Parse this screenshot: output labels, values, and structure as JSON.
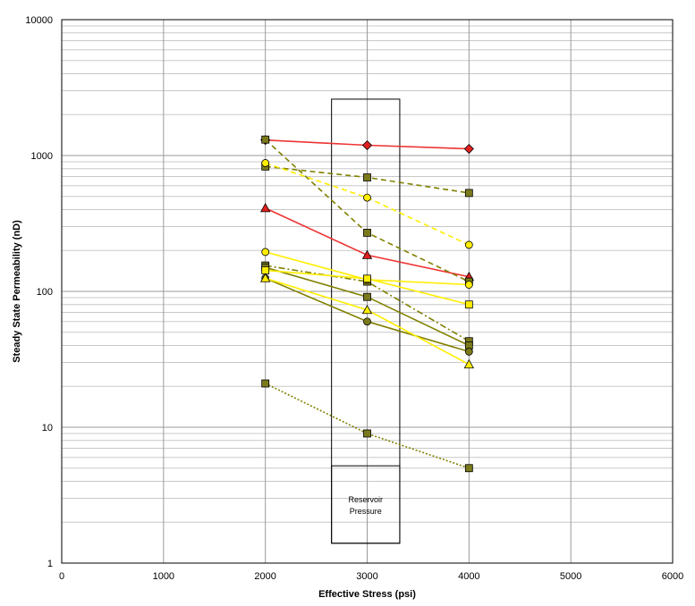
{
  "chart_data": {
    "type": "scatter",
    "title": "",
    "xlabel": "Effective Stress (psi)",
    "ylabel": "Steady State Permeability (nD)",
    "xlim": [
      0,
      6000
    ],
    "ylim": [
      1,
      10000
    ],
    "y_scale": "log",
    "x_ticks": [
      0,
      1000,
      2000,
      3000,
      4000,
      5000,
      6000
    ],
    "y_ticks": [
      1,
      10,
      100,
      1000,
      10000
    ],
    "grid": true,
    "legend": "none",
    "annotation": {
      "lines": [
        "Reservoir",
        "Pressure"
      ],
      "outer_box": {
        "x": [
          2650,
          3320
        ],
        "y": [
          1.4,
          2600
        ]
      },
      "label_box": {
        "x": [
          2650,
          3320
        ],
        "y": [
          1.4,
          5.2
        ]
      }
    },
    "series": [
      {
        "x": [
          2000,
          3000,
          4000
        ],
        "y": [
          1300,
          1190,
          1120
        ],
        "color": "#ee3333",
        "fill": "#e02020",
        "marker": "diamond",
        "dash": "solid"
      },
      {
        "x": [
          2000,
          3000,
          4000
        ],
        "y": [
          410,
          185,
          128
        ],
        "color": "#ee3333",
        "fill": "#e02020",
        "marker": "triangle",
        "dash": "solid"
      },
      {
        "x": [
          2000,
          3000,
          4000
        ],
        "y": [
          830,
          690,
          530
        ],
        "color": "#808000",
        "fill": "#7a7a1c",
        "marker": "square",
        "dash": "dashed"
      },
      {
        "x": [
          2000,
          3000,
          4000
        ],
        "y": [
          1310,
          270,
          118
        ],
        "color": "#808000",
        "fill": "#7a7a1c",
        "marker": "square",
        "dash": "dashed"
      },
      {
        "x": [
          2000,
          3000,
          4000
        ],
        "y": [
          155,
          118,
          43
        ],
        "color": "#808000",
        "fill": "#7a7a1c",
        "marker": "square",
        "dash": "dashdot"
      },
      {
        "x": [
          2000,
          3000,
          4000
        ],
        "y": [
          150,
          91,
          40
        ],
        "color": "#808000",
        "fill": "#7a7a1c",
        "marker": "square",
        "dash": "solid"
      },
      {
        "x": [
          2000,
          3000,
          4000
        ],
        "y": [
          125,
          60,
          36
        ],
        "color": "#808000",
        "fill": "#7a7a1c",
        "marker": "circle",
        "dash": "solid"
      },
      {
        "x": [
          2000,
          3000,
          4000
        ],
        "y": [
          21,
          9,
          5
        ],
        "color": "#808000",
        "fill": "#7a7a1c",
        "marker": "square",
        "dash": "dotted"
      },
      {
        "x": [
          2000,
          3000,
          4000
        ],
        "y": [
          880,
          490,
          220
        ],
        "color": "#ffee00",
        "fill": "#ffee00",
        "marker": "circle",
        "dash": "dashed"
      },
      {
        "x": [
          2000,
          3000,
          4000
        ],
        "y": [
          195,
          122,
          112
        ],
        "color": "#ffee00",
        "fill": "#ffee00",
        "marker": "circle",
        "dash": "solid"
      },
      {
        "x": [
          2000,
          3000,
          4000
        ],
        "y": [
          143,
          124,
          80
        ],
        "color": "#ffee00",
        "fill": "#ffee00",
        "marker": "square",
        "dash": "solid"
      },
      {
        "x": [
          2000,
          3000,
          4000
        ],
        "y": [
          125,
          73,
          29
        ],
        "color": "#ffee00",
        "fill": "#ffee00",
        "marker": "triangle",
        "dash": "solid"
      }
    ]
  }
}
